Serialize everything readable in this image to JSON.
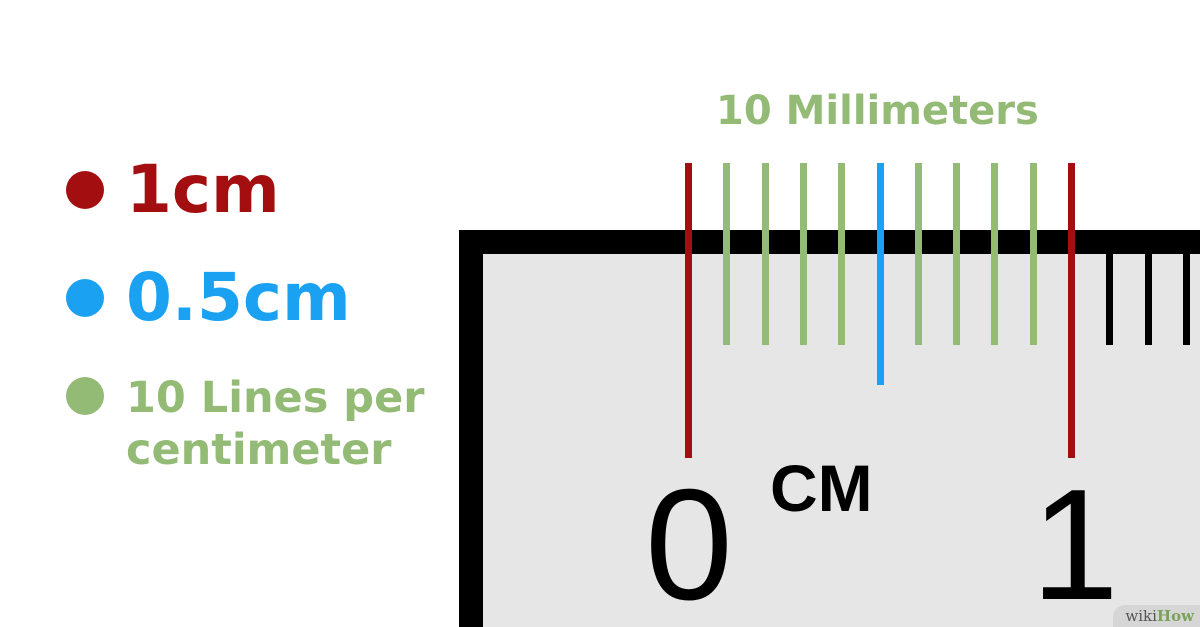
{
  "colors": {
    "cm": "#a30f10",
    "half_cm": "#1aa1f2",
    "mm": "#93bb76",
    "ruler_ticks": "#000000"
  },
  "legend": [
    {
      "id": "cm",
      "label": "1cm",
      "color": "#a30f10"
    },
    {
      "id": "half",
      "label": "0.5cm",
      "color": "#1aa1f2"
    },
    {
      "id": "mm",
      "label": "10 Lines per\ncentimeter",
      "color": "#93bb76"
    }
  ],
  "ruler": {
    "mm_title": "10 Millimeters",
    "unit": "CM",
    "numbers": [
      "0",
      "1"
    ]
  },
  "watermark": {
    "wiki": "wiki",
    "how": "How"
  }
}
